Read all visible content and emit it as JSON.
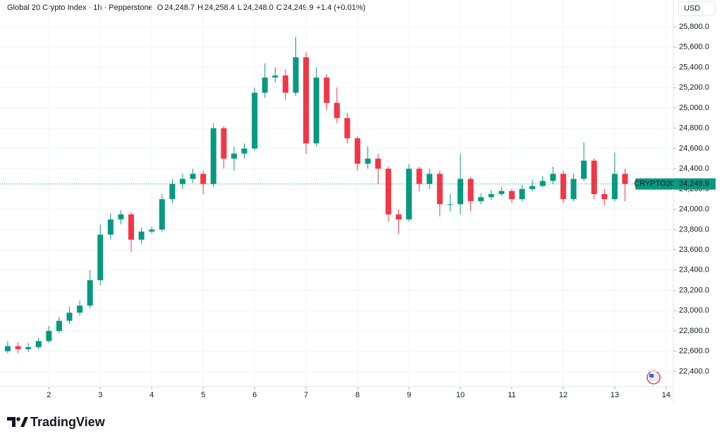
{
  "chart_data": {
    "type": "candlestick",
    "title": "Global 20 Crypto Index · 1h · Pepperstone",
    "ohlc_header": [
      {
        "label": "O",
        "value": "24,248.7"
      },
      {
        "label": "H",
        "value": "24,258.4"
      },
      {
        "label": "L",
        "value": "24,248.0"
      },
      {
        "label": "C",
        "value": "24,249.9"
      }
    ],
    "change": "+1.4 (+0.01%)",
    "currency": "USD",
    "symbol_tag": "CRYPTO20",
    "last_price": {
      "value": 24249.9,
      "label": "24,249.9"
    },
    "brand": "TradingView",
    "up_color": "#089981",
    "down_color": "#f23645",
    "grid": true,
    "x": [
      1.2,
      1.4,
      1.6,
      1.8,
      2.0,
      2.2,
      2.4,
      2.6,
      2.8,
      3.0,
      3.2,
      3.4,
      3.6,
      3.8,
      4.0,
      4.2,
      4.4,
      4.6,
      4.8,
      5.0,
      5.2,
      5.4,
      5.6,
      5.8,
      6.0,
      6.2,
      6.4,
      6.6,
      6.8,
      7.0,
      7.2,
      7.4,
      7.6,
      7.8,
      8.0,
      8.2,
      8.4,
      8.6,
      8.8,
      9.0,
      9.2,
      9.4,
      9.6,
      9.8,
      10.0,
      10.2,
      10.4,
      10.6,
      10.8,
      11.0,
      11.2,
      11.4,
      11.6,
      11.8,
      12.0,
      12.2,
      12.4,
      12.6,
      12.8,
      13.0,
      13.2
    ],
    "open": [
      22600,
      22650,
      22620,
      22640,
      22700,
      22800,
      22900,
      22980,
      23050,
      23300,
      23750,
      23900,
      23950,
      23700,
      23780,
      23800,
      24100,
      24250,
      24300,
      24350,
      24250,
      24800,
      24500,
      24550,
      24600,
      25150,
      25300,
      25320,
      25150,
      25500,
      24650,
      25300,
      25050,
      24900,
      24700,
      24450,
      24500,
      24400,
      23950,
      23900,
      24400,
      24250,
      24350,
      24050,
      24050,
      24300,
      24080,
      24120,
      24150,
      24180,
      24100,
      24200,
      24230,
      24280,
      24350,
      24100,
      24300,
      24480,
      24150,
      24100,
      24350
    ],
    "high": [
      22700,
      22690,
      22680,
      22730,
      22850,
      22940,
      23040,
      23100,
      23400,
      23850,
      23960,
      23990,
      23970,
      23820,
      23830,
      24150,
      24300,
      24350,
      24400,
      24380,
      24850,
      24820,
      24620,
      24650,
      25200,
      25440,
      25400,
      25380,
      25700,
      25550,
      25400,
      25330,
      25200,
      24950,
      24720,
      24620,
      24550,
      24420,
      24000,
      24450,
      24420,
      24400,
      24380,
      24150,
      24550,
      24320,
      24160,
      24190,
      24220,
      24200,
      24240,
      24290,
      24330,
      24420,
      24380,
      24350,
      24660,
      24500,
      24200,
      24560,
      24400
    ],
    "low": [
      22580,
      22580,
      22590,
      22620,
      22680,
      22780,
      22870,
      22950,
      23020,
      23250,
      23700,
      23850,
      23580,
      23660,
      23760,
      23780,
      24060,
      24200,
      24260,
      24150,
      24220,
      24400,
      24380,
      24500,
      24580,
      25100,
      25250,
      25080,
      25120,
      24550,
      24620,
      24980,
      24850,
      24650,
      24380,
      24400,
      24250,
      23880,
      23760,
      23880,
      24180,
      24200,
      23930,
      23980,
      23950,
      23980,
      24050,
      24090,
      24130,
      24060,
      24080,
      24180,
      24220,
      24250,
      24060,
      24080,
      24280,
      24100,
      24040,
      24080,
      24080
    ],
    "close": [
      22650,
      22620,
      22640,
      22700,
      22800,
      22900,
      22980,
      23050,
      23300,
      23750,
      23900,
      23950,
      23700,
      23780,
      23800,
      24100,
      24250,
      24300,
      24350,
      24250,
      24800,
      24500,
      24550,
      24600,
      25150,
      25300,
      25320,
      25150,
      25500,
      24650,
      25300,
      25050,
      24900,
      24700,
      24450,
      24500,
      24400,
      23950,
      23900,
      24400,
      24250,
      24350,
      24050,
      24050,
      24300,
      24080,
      24120,
      24150,
      24180,
      24100,
      24200,
      24230,
      24280,
      24350,
      24100,
      24300,
      24480,
      24150,
      24100,
      24350,
      24250
    ],
    "xlim": [
      1.05,
      14.14
    ],
    "xticks": [
      2,
      3,
      4,
      5,
      6,
      7,
      8,
      9,
      10,
      11,
      12,
      13,
      14
    ],
    "ylim": [
      22250,
      26065
    ],
    "yticks": [
      {
        "value": 22400,
        "label": "22,400.0"
      },
      {
        "value": 22600,
        "label": "22,600.0"
      },
      {
        "value": 22800,
        "label": "22,800.0"
      },
      {
        "value": 23000,
        "label": "23,000.0"
      },
      {
        "value": 23200,
        "label": "23,200.0"
      },
      {
        "value": 23400,
        "label": "23,400.0"
      },
      {
        "value": 23600,
        "label": "23,600.0"
      },
      {
        "value": 23800,
        "label": "23,800.0"
      },
      {
        "value": 24000,
        "label": "24,000.0"
      },
      {
        "value": 24200,
        "label": "24,200.0"
      },
      {
        "value": 24400,
        "label": "24,400.0"
      },
      {
        "value": 24600,
        "label": "24,600.0"
      },
      {
        "value": 24800,
        "label": "24,800.0"
      },
      {
        "value": 25000,
        "label": "25,000.0"
      },
      {
        "value": 25200,
        "label": "25,200.0"
      },
      {
        "value": 25400,
        "label": "25,400.0"
      },
      {
        "value": 25600,
        "label": "25,600.0"
      },
      {
        "value": 25800,
        "label": "25,800.0"
      }
    ]
  }
}
